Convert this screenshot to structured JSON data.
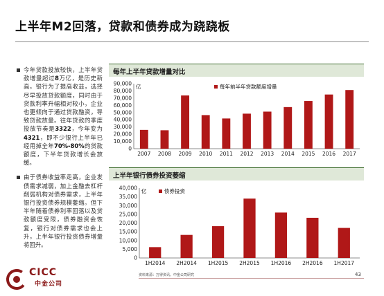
{
  "slide": {
    "title": "上半年M2回落，贷款和债券成为跷跷板",
    "page_number": "43",
    "source": "资料来源：万得资讯，中金公司研究"
  },
  "bullets": [
    {
      "parts": [
        "今年贷款投放较快，上半年贷款增量超过",
        "8",
        "万亿，是历史新高。银行为了提高收益，选择尽早投放贷款额度，同时由于贷款利率升幅相对较小，企业也更倾向于通过贷款融资，导致贷款放量。往年贷款的季度投放节奏是",
        "3322",
        "，今年变为",
        "4321",
        "，即不少银行上半年已经用掉全年",
        "70%-80%",
        "的贷款额度，下半年贷款增长会放缓。"
      ]
    },
    {
      "parts": [
        "由于债券收益率走高，企业发债需求减弱，加上金融去杠杆削弱机构对债券需求，上半年银行投资债券规模萎缩。但下半年随着债券利率回落以及贷款额度受限，债券融资会恢复，银行对债券需求也会上升，上半年银行投资债券增量",
        "",
        "",
        "",
        "",
        "",
        "",
        "",
        "将回升。"
      ]
    }
  ],
  "logo": {
    "text": "CICC",
    "cn": "中金公司"
  },
  "panels": [
    {
      "heading": "每年上半年贷款增量对比"
    },
    {
      "heading": "上半年银行债券投资萎缩"
    }
  ],
  "chart_data": [
    {
      "type": "bar",
      "title": "每年上半年贷款增量对比",
      "unit": "亿",
      "categories": [
        "2007",
        "2008",
        "2009",
        "2010",
        "2011",
        "2012",
        "2013",
        "2014",
        "2015",
        "2016",
        "2017"
      ],
      "series": [
        {
          "name": "每年前半年贷款额度增量",
          "values": [
            26000,
            25500,
            73700,
            46500,
            41800,
            48500,
            51300,
            57600,
            66000,
            75000,
            81200
          ]
        }
      ],
      "ylim": [
        0,
        90000
      ],
      "yticks": [
        "0",
        "10,000",
        "20,000",
        "30,000",
        "40,000",
        "50,000",
        "60,000",
        "70,000",
        "80,000",
        "90,000"
      ],
      "legend": "top-right",
      "color": "#b01818"
    },
    {
      "type": "bar",
      "title": "上半年银行债券投资萎缩",
      "unit": "亿",
      "categories": [
        "1H2014",
        "2H2014",
        "1H2015",
        "2H2015",
        "1H2016",
        "2H2016",
        "1H2017"
      ],
      "series": [
        {
          "name": "债券投资",
          "values": [
            6200,
            13200,
            18200,
            34000,
            26000,
            23000,
            17200
          ]
        }
      ],
      "ylim": [
        0,
        40000
      ],
      "yticks": [
        "0",
        "5,000",
        "10,000",
        "15,000",
        "20,000",
        "25,000",
        "30,000",
        "35,000",
        "40,000"
      ],
      "legend": "top-left",
      "color": "#b01818"
    }
  ]
}
